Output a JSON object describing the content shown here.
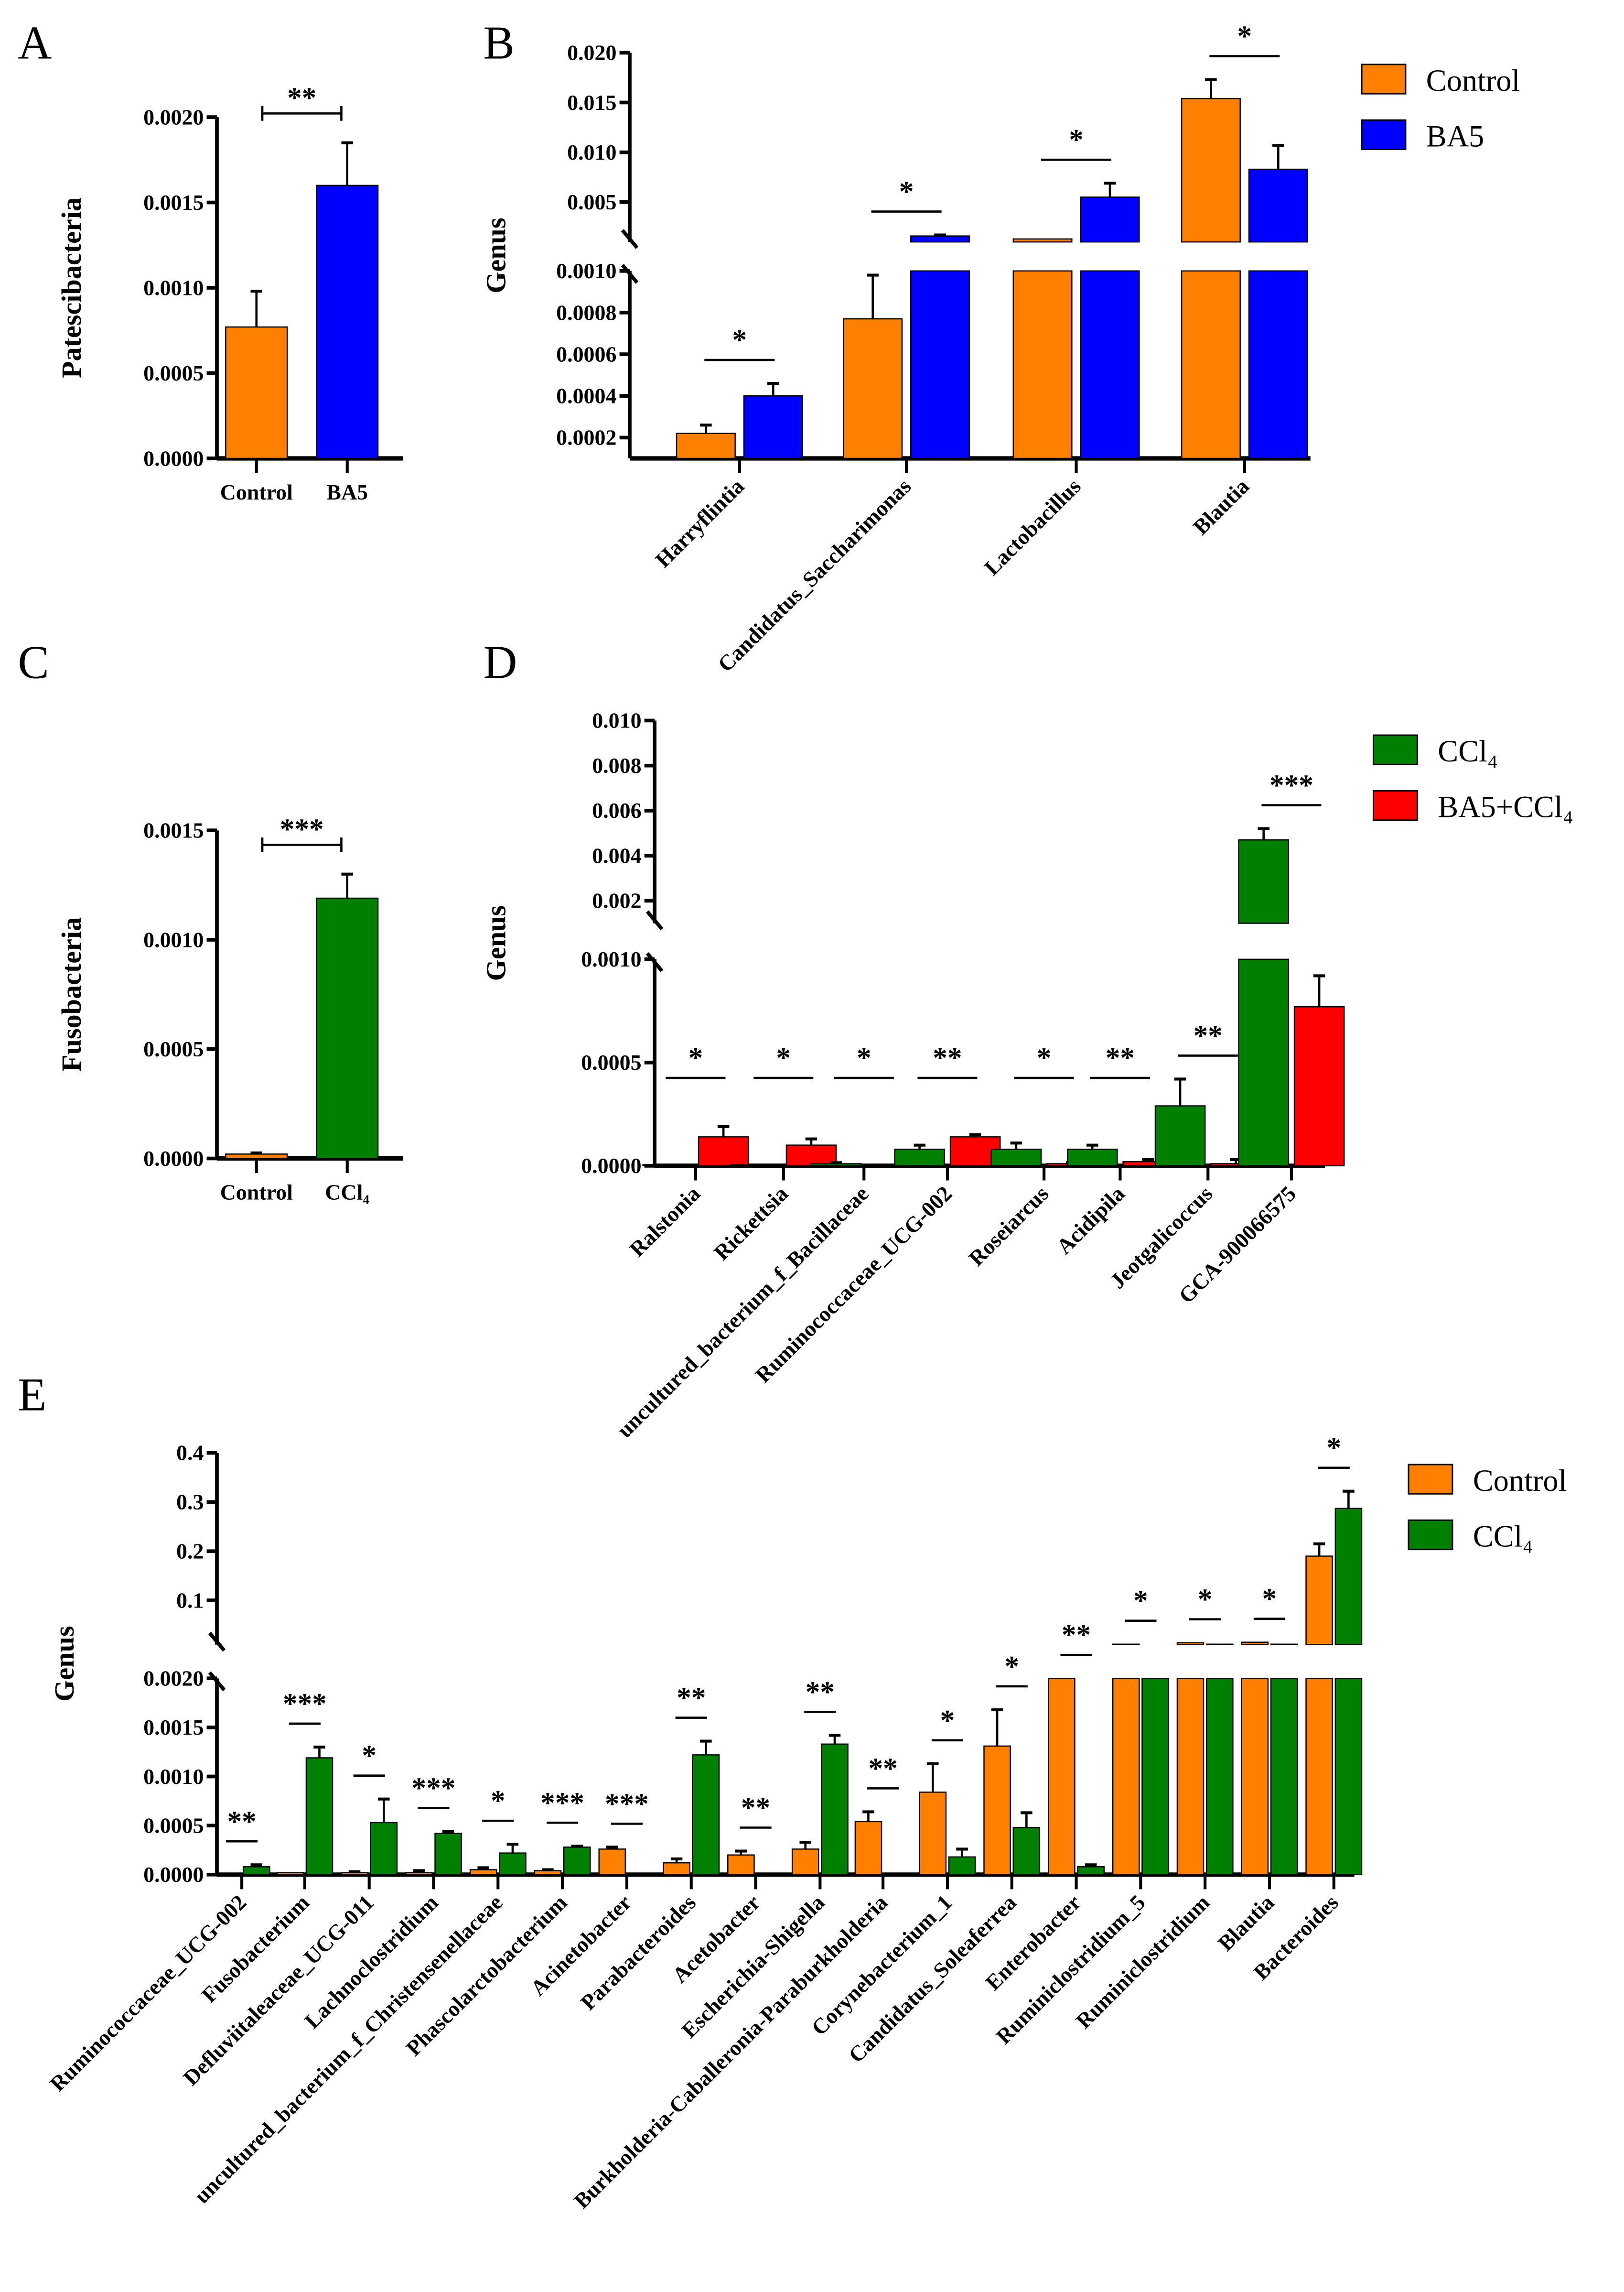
{
  "colors": {
    "Control": "#ff8000",
    "BA5": "#0000ff",
    "CCl4": "#008000",
    "BA5+CCl4": "#ff0000"
  },
  "chart_data": [
    {
      "panel": "A",
      "type": "bar",
      "ylabel": "Patescibacteria",
      "yticks": [
        "0.0000",
        "0.0005",
        "0.0010",
        "0.0015",
        "0.0020"
      ],
      "ytick_values": [
        0,
        0.0005,
        0.001,
        0.0015,
        0.002
      ],
      "categories": [
        "Control",
        "BA5"
      ],
      "series": [
        {
          "name": "value",
          "values": [
            0.00077,
            0.0016
          ],
          "errors": [
            0.00098,
            0.00185
          ],
          "colors": [
            "Control",
            "BA5"
          ]
        }
      ],
      "significance": [
        "**"
      ]
    },
    {
      "panel": "B",
      "type": "bar",
      "ylabel": "Genus",
      "broken_axis": true,
      "yticks": [
        "0.0002",
        "0.0004",
        "0.0006",
        "0.0008",
        "0.0010",
        "0.005",
        "0.010",
        "0.015",
        "0.020"
      ],
      "ytick_values": [
        0.0002,
        0.0004,
        0.0006,
        0.0008,
        0.001,
        0.005,
        0.01,
        0.015,
        0.02
      ],
      "categories": [
        "Harryflintia",
        "Candidatus_Saccharimonas",
        "Lactobacillus",
        "Blautia"
      ],
      "series": [
        {
          "name": "Control",
          "values": [
            0.00022,
            0.00077,
            0.0013,
            0.0154
          ],
          "errors": [
            0.00026,
            0.00098,
            0.0013,
            0.0173
          ]
        },
        {
          "name": "BA5",
          "values": [
            0.0004,
            0.0016,
            0.0055,
            0.0083
          ],
          "errors": [
            0.00046,
            0.0017,
            0.0069,
            0.0107
          ]
        }
      ],
      "significance": [
        "*",
        "*",
        "*",
        "*"
      ],
      "legend": [
        "Control",
        "BA5"
      ]
    },
    {
      "panel": "C",
      "type": "bar",
      "ylabel": "Fusobacteria",
      "yticks": [
        "0.0000",
        "0.0005",
        "0.0010",
        "0.0015"
      ],
      "ytick_values": [
        0,
        0.0005,
        0.001,
        0.0015
      ],
      "categories": [
        "Control",
        "CCl₄"
      ],
      "series": [
        {
          "name": "value",
          "values": [
            2e-05,
            0.00119
          ],
          "errors": [
            2.5e-05,
            0.0013
          ],
          "colors": [
            "Control",
            "CCl4"
          ]
        }
      ],
      "significance": [
        "***"
      ]
    },
    {
      "panel": "D",
      "type": "bar",
      "ylabel": "Genus",
      "broken_axis": true,
      "yticks": [
        "0.0000",
        "0.0005",
        "0.0010",
        "0.002",
        "0.004",
        "0.006",
        "0.008",
        "0.010"
      ],
      "ytick_values": [
        0,
        0.0005,
        0.001,
        0.002,
        0.004,
        0.006,
        0.008,
        0.01
      ],
      "categories": [
        "Ralstonia",
        "Rickettsia",
        "uncultured_bacterium_f_Bacillaceae",
        "Ruminococcaceae_UCG-002",
        "Roseiarcus",
        "Acidipila",
        "Jeotgalicoccus",
        "GCA-900066575"
      ],
      "series": [
        {
          "name": "CCl4",
          "values": [
            5e-06,
            5e-06,
            1e-05,
            8e-05,
            8e-05,
            8e-05,
            0.00029,
            0.0047
          ],
          "errors": [
            5e-06,
            5e-06,
            1.5e-05,
            0.0001,
            0.00011,
            0.0001,
            0.00042,
            0.0052
          ]
        },
        {
          "name": "BA5+CCl4",
          "values": [
            0.00014,
            0.0001,
            0,
            0.00014,
            1e-05,
            2e-05,
            1e-05,
            0.00077
          ],
          "errors": [
            0.00019,
            0.00013,
            0,
            0.00015,
            1.5e-05,
            3e-05,
            3e-05,
            0.00092
          ]
        }
      ],
      "significance": [
        "*",
        "*",
        "*",
        "**",
        "*",
        "**",
        "**",
        "***"
      ],
      "legend": [
        "CCl₄",
        "BA5+CCl₄"
      ]
    },
    {
      "panel": "E",
      "type": "bar",
      "ylabel": "Genus",
      "broken_axis": true,
      "yticks": [
        "0.0000",
        "0.0005",
        "0.0010",
        "0.0015",
        "0.0020",
        "0.1",
        "0.2",
        "0.3",
        "0.4"
      ],
      "ytick_values": [
        0,
        0.0005,
        0.001,
        0.0015,
        0.002,
        0.1,
        0.2,
        0.3,
        0.4
      ],
      "categories": [
        "Ruminococcaceae_UCG-002",
        "Fusobacterium",
        "Defluviitaleaceae_UCG-011",
        "Lachnoclostridium",
        "uncultured_bacterium_f_Christensenellaceae",
        "Phascolarctobacterium",
        "Acinetobacter",
        "Parabacteroides",
        "Acetobacter",
        "Escherichia-Shigella",
        "Burkholderia-Caballeronia-Paraburkholderia",
        "Corynebacterium_1",
        "Candidatus_Soleaferrea",
        "Enterobacter",
        "Ruminiclostridium_5",
        "Ruminiclostridium",
        "Blautia",
        "Bacteroides"
      ],
      "series": [
        {
          "name": "Control",
          "values": [
            0,
            2e-05,
            2e-05,
            2e-05,
            5e-05,
            4e-05,
            0.00026,
            0.00012,
            0.0002,
            0.00026,
            0.00054,
            0.00084,
            0.00131,
            0.008,
            0.011,
            0.014,
            0.015,
            0.19
          ],
          "errors": [
            0,
            2e-05,
            3e-05,
            4e-05,
            7e-05,
            5e-05,
            0.00028,
            0.00016,
            0.00024,
            0.00033,
            0.00064,
            0.00113,
            0.00168,
            0.008,
            0.011,
            0.014,
            0.015,
            0.215
          ]
        },
        {
          "name": "CCl4",
          "values": [
            8e-05,
            0.00119,
            0.00053,
            0.00042,
            0.00022,
            0.00028,
            0,
            0.00122,
            0,
            0.00133,
            0,
            0.00018,
            0.00048,
            8e-05,
            0.01,
            0.011,
            0.011,
            0.287
          ],
          "errors": [
            0.0001,
            0.0013,
            0.00077,
            0.00044,
            0.00031,
            0.00029,
            0,
            0.00136,
            0,
            0.00142,
            0,
            0.00026,
            0.00063,
            0.0001,
            0.01,
            0.011,
            0.011,
            0.322
          ]
        }
      ],
      "significance": [
        "**",
        "***",
        "*",
        "***",
        "*",
        "***",
        "***",
        "**",
        "**",
        "**",
        "**",
        "*",
        "*",
        "**",
        "*",
        "*",
        "*",
        "*"
      ],
      "legend": [
        "Control",
        "CCl₄"
      ]
    }
  ]
}
